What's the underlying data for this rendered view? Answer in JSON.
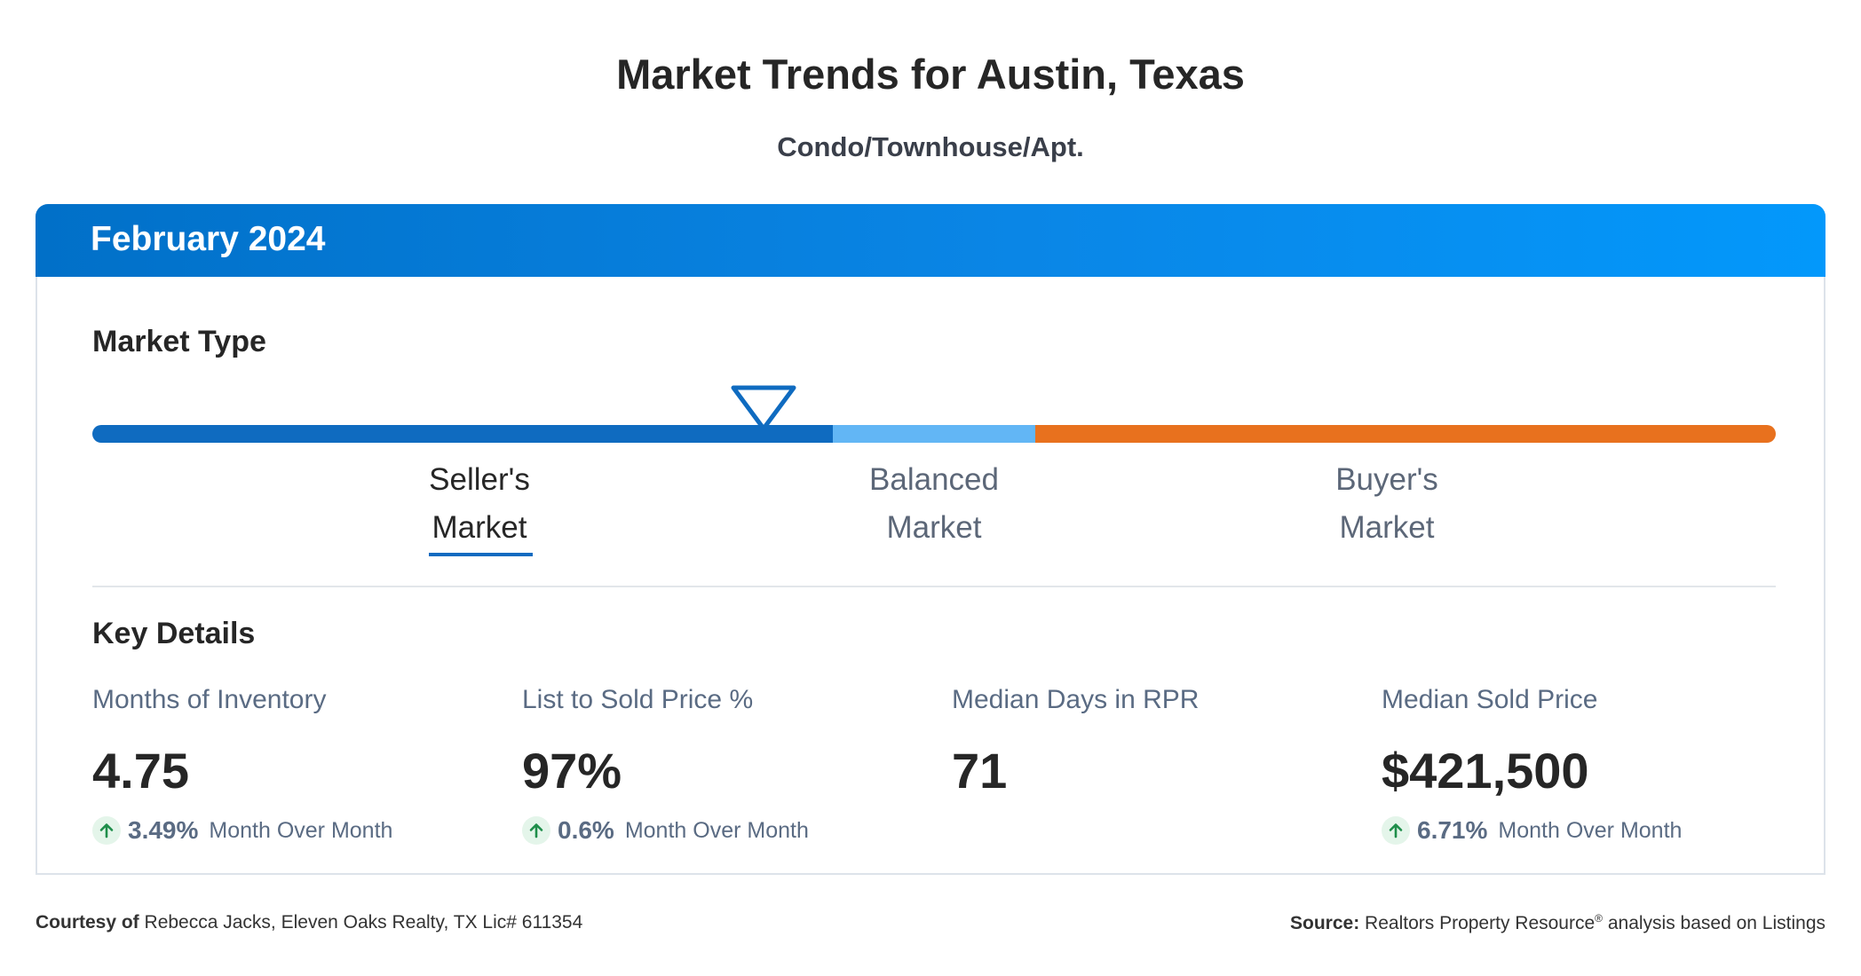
{
  "header": {
    "title": "Market Trends for Austin, Texas",
    "subtitle": "Condo/Townhouse/Apt."
  },
  "card": {
    "period": "February 2024",
    "market_type": {
      "title": "Market Type",
      "marker_position": 0.385,
      "segments": [
        {
          "name": "Seller's Market",
          "color": "#0f6bc0"
        },
        {
          "name": "Balanced Market",
          "color": "#62b6f5"
        },
        {
          "name": "Buyer's Market",
          "color": "#e8711e"
        }
      ],
      "labels": {
        "seller": [
          "Seller's",
          "Market"
        ],
        "balanced": [
          "Balanced",
          "Market"
        ],
        "buyer": [
          "Buyer's",
          "Market"
        ]
      },
      "selected": "Seller's Market"
    },
    "key_details": {
      "title": "Key Details",
      "metrics": [
        {
          "label": "Months of Inventory",
          "value": "4.75",
          "change": "3.49%",
          "change_label": "Month Over Month",
          "direction": "up"
        },
        {
          "label": "List to Sold Price %",
          "value": "97%",
          "change": "0.6%",
          "change_label": "Month Over Month",
          "direction": "up"
        },
        {
          "label": "Median Days in RPR",
          "value": "71"
        },
        {
          "label": "Median Sold Price",
          "value": "$421,500",
          "change": "6.71%",
          "change_label": "Month Over Month",
          "direction": "up"
        }
      ]
    }
  },
  "footer": {
    "courtesy_label": "Courtesy of",
    "courtesy_text": "Rebecca Jacks, Eleven Oaks Realty, TX Lic# 611354",
    "source_label": "Source:",
    "source_text": "Realtors Property Resource",
    "source_mark": "®",
    "source_suffix": "analysis based on Listings"
  },
  "colors": {
    "accent_blue": "#0f6bc0",
    "up_green": "#1e8e4a"
  },
  "icons": {
    "marker": "triangle-down-marker-icon",
    "change": "arrow-up-icon"
  }
}
